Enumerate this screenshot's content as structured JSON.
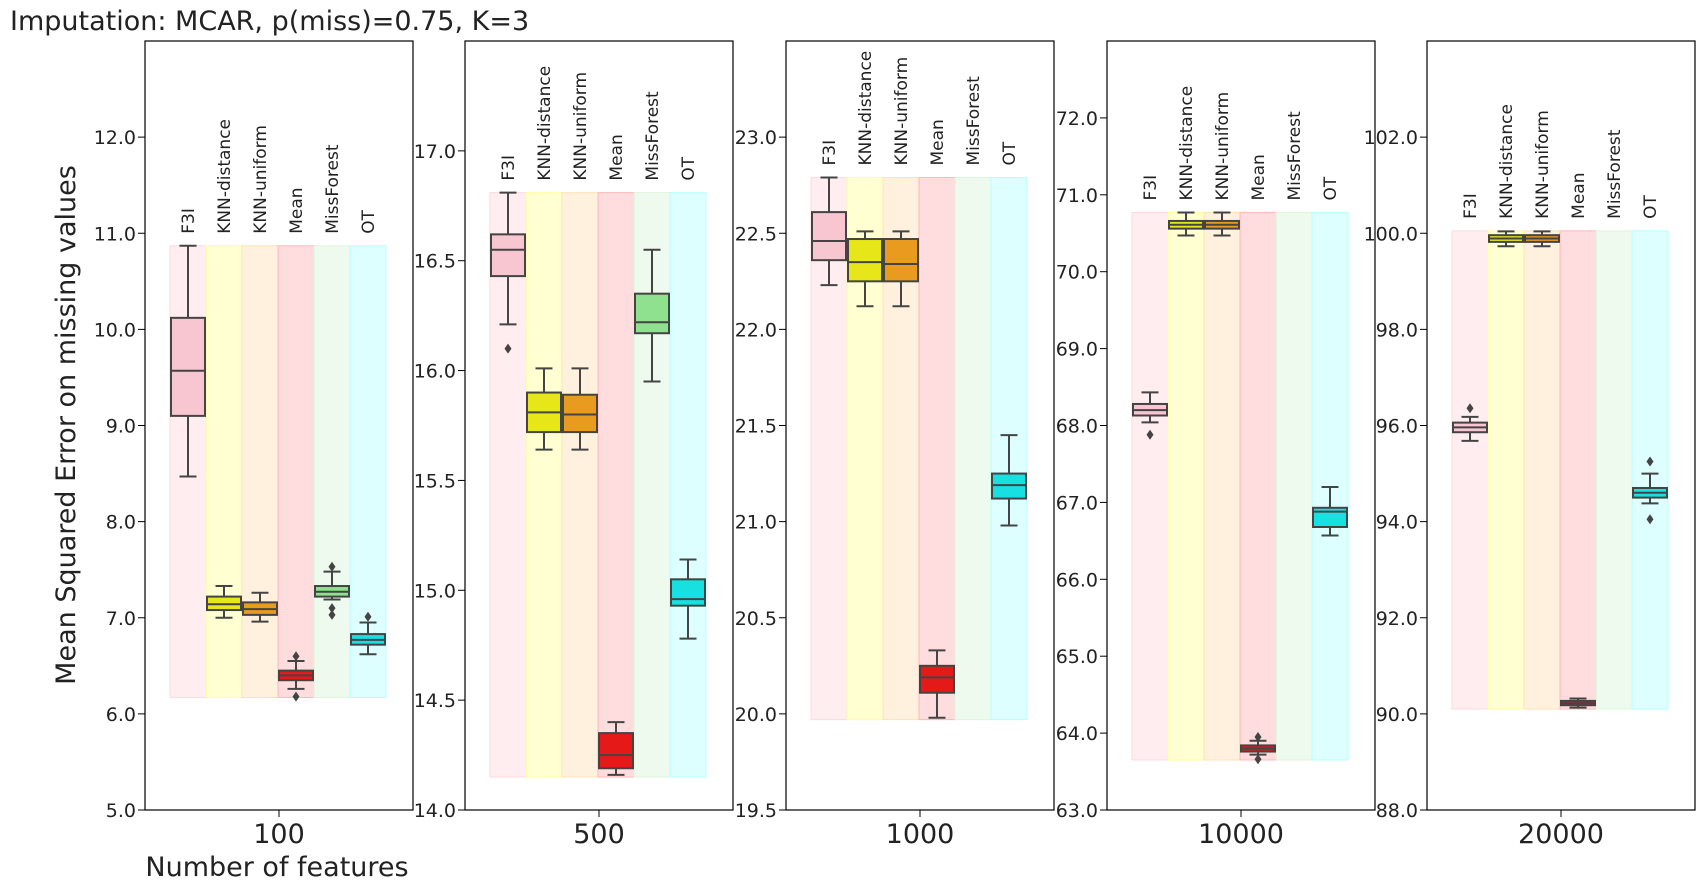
{
  "chart_data": {
    "type": "box",
    "title": "Imputation: MCAR, p(miss)=0.75, K=3",
    "ylabel": "Mean Squared Error on missing values",
    "xlabel": "Number of features",
    "methods": [
      "F3I",
      "KNN-distance",
      "KNN-uniform",
      "Mean",
      "MissForest",
      "OT"
    ],
    "method_colors": [
      "#f7c6d0",
      "#e6e619",
      "#e89b1f",
      "#e61919",
      "#8fe08f",
      "#19e0e0"
    ],
    "band_colors": [
      "#ffd6dc",
      "#ffff99",
      "#ffe0b3",
      "#ffb3b8",
      "#d9f5d9",
      "#b3ffff"
    ],
    "panels": [
      {
        "features": "100",
        "ylim": [
          5.0,
          13.0
        ],
        "yticks": [
          5.0,
          6.0,
          7.0,
          8.0,
          9.0,
          10.0,
          11.0,
          12.0
        ],
        "ytick_labels": [
          "5.0",
          "6.0",
          "7.0",
          "8.0",
          "9.0",
          "10.0",
          "11.0",
          "12.0"
        ],
        "band_range": [
          6.17,
          10.87
        ],
        "boxes": [
          {
            "method": "F3I",
            "whislo": 8.47,
            "q1": 9.1,
            "med": 9.57,
            "q3": 10.12,
            "whishi": 10.87,
            "fliers": []
          },
          {
            "method": "KNN-distance",
            "whislo": 7.0,
            "q1": 7.08,
            "med": 7.14,
            "q3": 7.22,
            "whishi": 7.33,
            "fliers": []
          },
          {
            "method": "KNN-uniform",
            "whislo": 6.96,
            "q1": 7.03,
            "med": 7.09,
            "q3": 7.16,
            "whishi": 7.26,
            "fliers": []
          },
          {
            "method": "Mean",
            "whislo": 6.26,
            "q1": 6.35,
            "med": 6.4,
            "q3": 6.45,
            "whishi": 6.55,
            "fliers": [
              6.6,
              6.18
            ]
          },
          {
            "method": "MissForest",
            "whislo": 7.19,
            "q1": 7.22,
            "med": 7.27,
            "q3": 7.33,
            "whishi": 7.48,
            "fliers": [
              7.53,
              7.1,
              7.03
            ]
          },
          {
            "method": "OT",
            "whislo": 6.62,
            "q1": 6.72,
            "med": 6.77,
            "q3": 6.83,
            "whishi": 6.95,
            "fliers": [
              7.01
            ]
          }
        ]
      },
      {
        "features": "500",
        "ylim": [
          14.0,
          17.5
        ],
        "yticks": [
          14.0,
          14.5,
          15.0,
          15.5,
          16.0,
          16.5,
          17.0
        ],
        "ytick_labels": [
          "14.0",
          "14.5",
          "15.0",
          "15.5",
          "16.0",
          "16.5",
          "17.0"
        ],
        "band_range": [
          14.15,
          16.81
        ],
        "boxes": [
          {
            "method": "F3I",
            "whislo": 16.21,
            "q1": 16.43,
            "med": 16.55,
            "q3": 16.62,
            "whishi": 16.81,
            "fliers": [
              16.1
            ]
          },
          {
            "method": "KNN-distance",
            "whislo": 15.64,
            "q1": 15.72,
            "med": 15.81,
            "q3": 15.9,
            "whishi": 16.01,
            "fliers": []
          },
          {
            "method": "KNN-uniform",
            "whislo": 15.64,
            "q1": 15.72,
            "med": 15.8,
            "q3": 15.89,
            "whishi": 16.01,
            "fliers": []
          },
          {
            "method": "Mean",
            "whislo": 14.16,
            "q1": 14.19,
            "med": 14.25,
            "q3": 14.35,
            "whishi": 14.4,
            "fliers": []
          },
          {
            "method": "MissForest",
            "whislo": 15.95,
            "q1": 16.17,
            "med": 16.22,
            "q3": 16.35,
            "whishi": 16.55,
            "fliers": []
          },
          {
            "method": "OT",
            "whislo": 14.78,
            "q1": 14.93,
            "med": 14.96,
            "q3": 15.05,
            "whishi": 15.14,
            "fliers": []
          }
        ]
      },
      {
        "features": "1000",
        "ylim": [
          19.5,
          23.5
        ],
        "yticks": [
          19.5,
          20.0,
          20.5,
          21.0,
          21.5,
          22.0,
          22.5,
          23.0
        ],
        "ytick_labels": [
          "19.5",
          "20.0",
          "20.5",
          "21.0",
          "21.5",
          "22.0",
          "22.5",
          "23.0"
        ],
        "band_range": [
          19.97,
          22.79
        ],
        "boxes": [
          {
            "method": "F3I",
            "whislo": 22.23,
            "q1": 22.36,
            "med": 22.46,
            "q3": 22.61,
            "whishi": 22.79,
            "fliers": []
          },
          {
            "method": "KNN-distance",
            "whislo": 22.12,
            "q1": 22.25,
            "med": 22.35,
            "q3": 22.47,
            "whishi": 22.51,
            "fliers": []
          },
          {
            "method": "KNN-uniform",
            "whislo": 22.12,
            "q1": 22.25,
            "med": 22.34,
            "q3": 22.47,
            "whishi": 22.51,
            "fliers": []
          },
          {
            "method": "Mean",
            "whislo": 19.98,
            "q1": 20.11,
            "med": 20.19,
            "q3": 20.25,
            "whishi": 20.33,
            "fliers": []
          },
          {
            "method": "MissForest",
            "whislo": null,
            "q1": null,
            "med": null,
            "q3": null,
            "whishi": null,
            "fliers": []
          },
          {
            "method": "OT",
            "whislo": 20.98,
            "q1": 21.12,
            "med": 21.19,
            "q3": 21.25,
            "whishi": 21.45,
            "fliers": []
          }
        ]
      },
      {
        "features": "10000",
        "ylim": [
          63.0,
          73.0
        ],
        "yticks": [
          63.0,
          64.0,
          65.0,
          66.0,
          67.0,
          68.0,
          69.0,
          70.0,
          71.0,
          72.0
        ],
        "ytick_labels": [
          "63.0",
          "64.0",
          "65.0",
          "66.0",
          "67.0",
          "68.0",
          "69.0",
          "70.0",
          "71.0",
          "72.0"
        ],
        "band_range": [
          63.65,
          70.77
        ],
        "boxes": [
          {
            "method": "F3I",
            "whislo": 68.04,
            "q1": 68.13,
            "med": 68.2,
            "q3": 68.28,
            "whishi": 68.43,
            "fliers": [
              67.88
            ]
          },
          {
            "method": "KNN-distance",
            "whislo": 70.47,
            "q1": 70.56,
            "med": 70.61,
            "q3": 70.66,
            "whishi": 70.77,
            "fliers": []
          },
          {
            "method": "KNN-uniform",
            "whislo": 70.47,
            "q1": 70.56,
            "med": 70.61,
            "q3": 70.66,
            "whishi": 70.77,
            "fliers": []
          },
          {
            "method": "Mean",
            "whislo": 63.72,
            "q1": 63.76,
            "med": 63.8,
            "q3": 63.84,
            "whishi": 63.9,
            "fliers": [
              63.95,
              63.66
            ]
          },
          {
            "method": "MissForest",
            "whislo": null,
            "q1": null,
            "med": null,
            "q3": null,
            "whishi": null,
            "fliers": []
          },
          {
            "method": "OT",
            "whislo": 66.57,
            "q1": 66.68,
            "med": 66.88,
            "q3": 66.93,
            "whishi": 67.2,
            "fliers": []
          }
        ]
      },
      {
        "features": "20000",
        "ylim": [
          88.0,
          104.0
        ],
        "yticks": [
          88.0,
          90.0,
          92.0,
          94.0,
          96.0,
          98.0,
          100.0,
          102.0
        ],
        "ytick_labels": [
          "88.0",
          "90.0",
          "92.0",
          "94.0",
          "96.0",
          "98.0",
          "100.0",
          "102.0"
        ],
        "band_range": [
          90.1,
          100.05
        ],
        "boxes": [
          {
            "method": "F3I",
            "whislo": 95.68,
            "q1": 95.86,
            "med": 95.96,
            "q3": 96.06,
            "whishi": 96.18,
            "fliers": [
              96.36
            ]
          },
          {
            "method": "KNN-distance",
            "whislo": 99.73,
            "q1": 99.82,
            "med": 99.89,
            "q3": 99.96,
            "whishi": 100.04,
            "fliers": []
          },
          {
            "method": "KNN-uniform",
            "whislo": 99.73,
            "q1": 99.82,
            "med": 99.89,
            "q3": 99.96,
            "whishi": 100.04,
            "fliers": []
          },
          {
            "method": "Mean",
            "whislo": 90.13,
            "q1": 90.18,
            "med": 90.22,
            "q3": 90.27,
            "whishi": 90.32,
            "fliers": []
          },
          {
            "method": "MissForest",
            "whislo": null,
            "q1": null,
            "med": null,
            "q3": null,
            "whishi": null,
            "fliers": []
          },
          {
            "method": "OT",
            "whislo": 94.38,
            "q1": 94.5,
            "med": 94.6,
            "q3": 94.7,
            "whishi": 95.0,
            "fliers": [
              95.25,
              94.05
            ]
          }
        ]
      }
    ]
  }
}
